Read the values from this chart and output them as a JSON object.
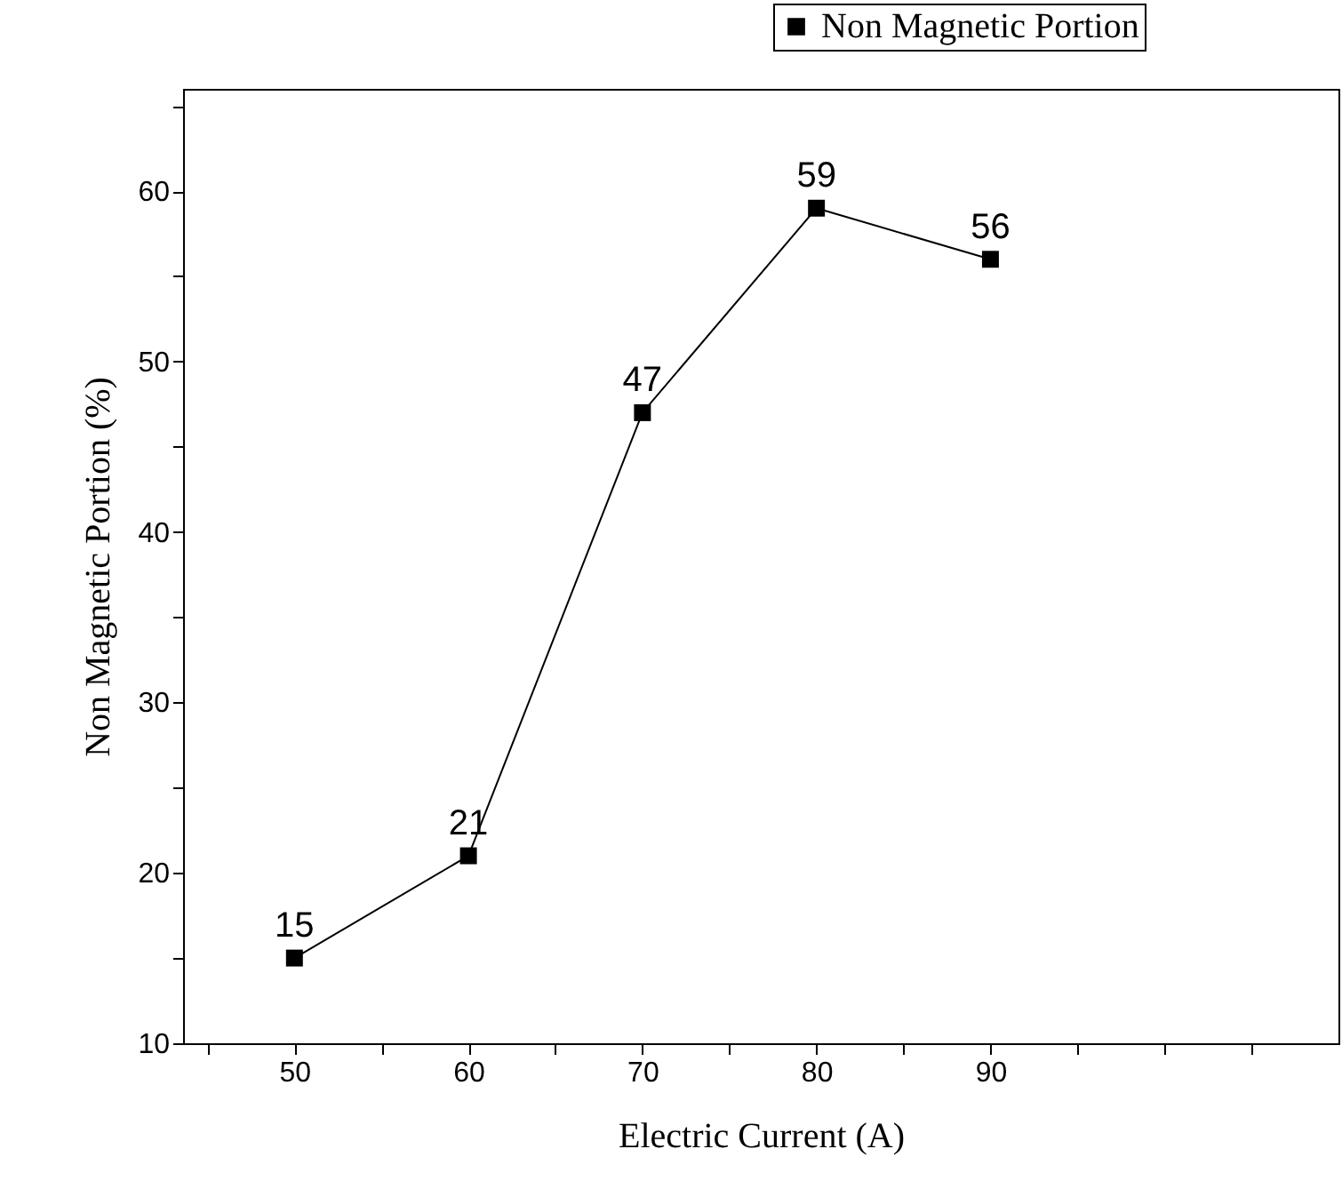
{
  "chart_data": {
    "type": "line",
    "xlabel": "Electric Current (A)",
    "ylabel": "Non Magnetic Portion (%)",
    "x": [
      50,
      60,
      70,
      80,
      90
    ],
    "series": [
      {
        "name": "Non Magnetic Portion",
        "color": "#000000",
        "values": [
          15,
          21,
          47,
          59,
          56
        ]
      }
    ],
    "xlim": [
      43.6,
      110
    ],
    "ylim": [
      10,
      66
    ],
    "xticks": [
      {
        "value": 45,
        "label": null
      },
      50,
      {
        "value": 55,
        "label": null
      },
      60,
      {
        "value": 65,
        "label": null
      },
      70,
      {
        "value": 75,
        "label": null
      },
      80,
      {
        "value": 85,
        "label": null
      },
      90,
      {
        "value": 95,
        "label": null
      },
      {
        "value": 100,
        "label": null
      },
      {
        "value": 105,
        "label": null
      }
    ],
    "yticks": [
      10,
      {
        "value": 15,
        "label": null
      },
      20,
      {
        "value": 25,
        "label": null
      },
      30,
      {
        "value": 35,
        "label": null
      },
      40,
      {
        "value": 45,
        "label": null
      },
      50,
      {
        "value": 55,
        "label": null
      },
      60,
      {
        "value": 65,
        "label": null
      }
    ],
    "data_labels": true,
    "marker": "square",
    "line_style": "solid",
    "grid": false,
    "legend": "top right"
  }
}
